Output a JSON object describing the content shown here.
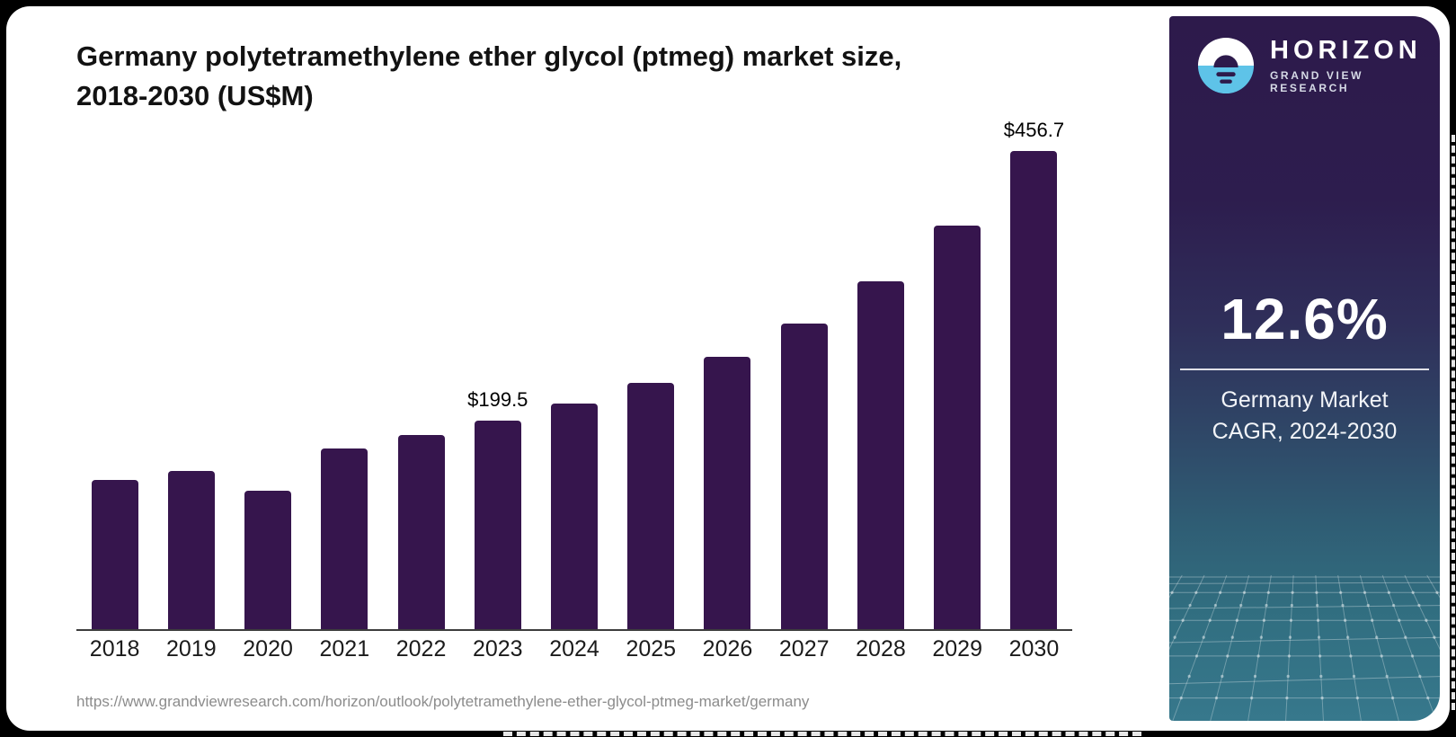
{
  "header": {
    "title_line1": "Germany polytetramethylene ether glycol (ptmeg) market size,",
    "title_line2": "2018-2030 (US$M)"
  },
  "footer": {
    "source_url": "https://www.grandviewresearch.com/horizon/outlook/polytetramethylene-ether-glycol-ptmeg-market/germany"
  },
  "chart_data": {
    "type": "bar",
    "title": "Germany polytetramethylene ether glycol (ptmeg) market size, 2018-2030 (US$M)",
    "unit": "US$M",
    "categories": [
      "2018",
      "2019",
      "2020",
      "2021",
      "2022",
      "2023",
      "2024",
      "2025",
      "2026",
      "2027",
      "2028",
      "2029",
      "2030"
    ],
    "values": [
      142.5,
      151.4,
      132.2,
      172.8,
      185.7,
      199.5,
      215.5,
      235.2,
      260.1,
      292.2,
      332.5,
      385.7,
      456.7
    ],
    "data_labels": {
      "2023": "$199.5",
      "2030": "$456.7"
    },
    "bar_color": "#36154d",
    "axis_color": "#3d3d3d",
    "ylim": [
      0,
      480
    ],
    "grid": false,
    "legend": "none"
  },
  "sidebar": {
    "brand_name": "HORIZON",
    "brand_subtitle": "GRAND VIEW RESEARCH",
    "stat_value": "12.6%",
    "stat_caption_line1": "Germany Market",
    "stat_caption_line2": "CAGR, 2024-2030",
    "colors": {
      "accent_blue": "#5ec3e8",
      "panel_top": "#2d1a4b",
      "panel_bottom": "#37788c",
      "logo_glyph": "#2d1a4b"
    }
  }
}
